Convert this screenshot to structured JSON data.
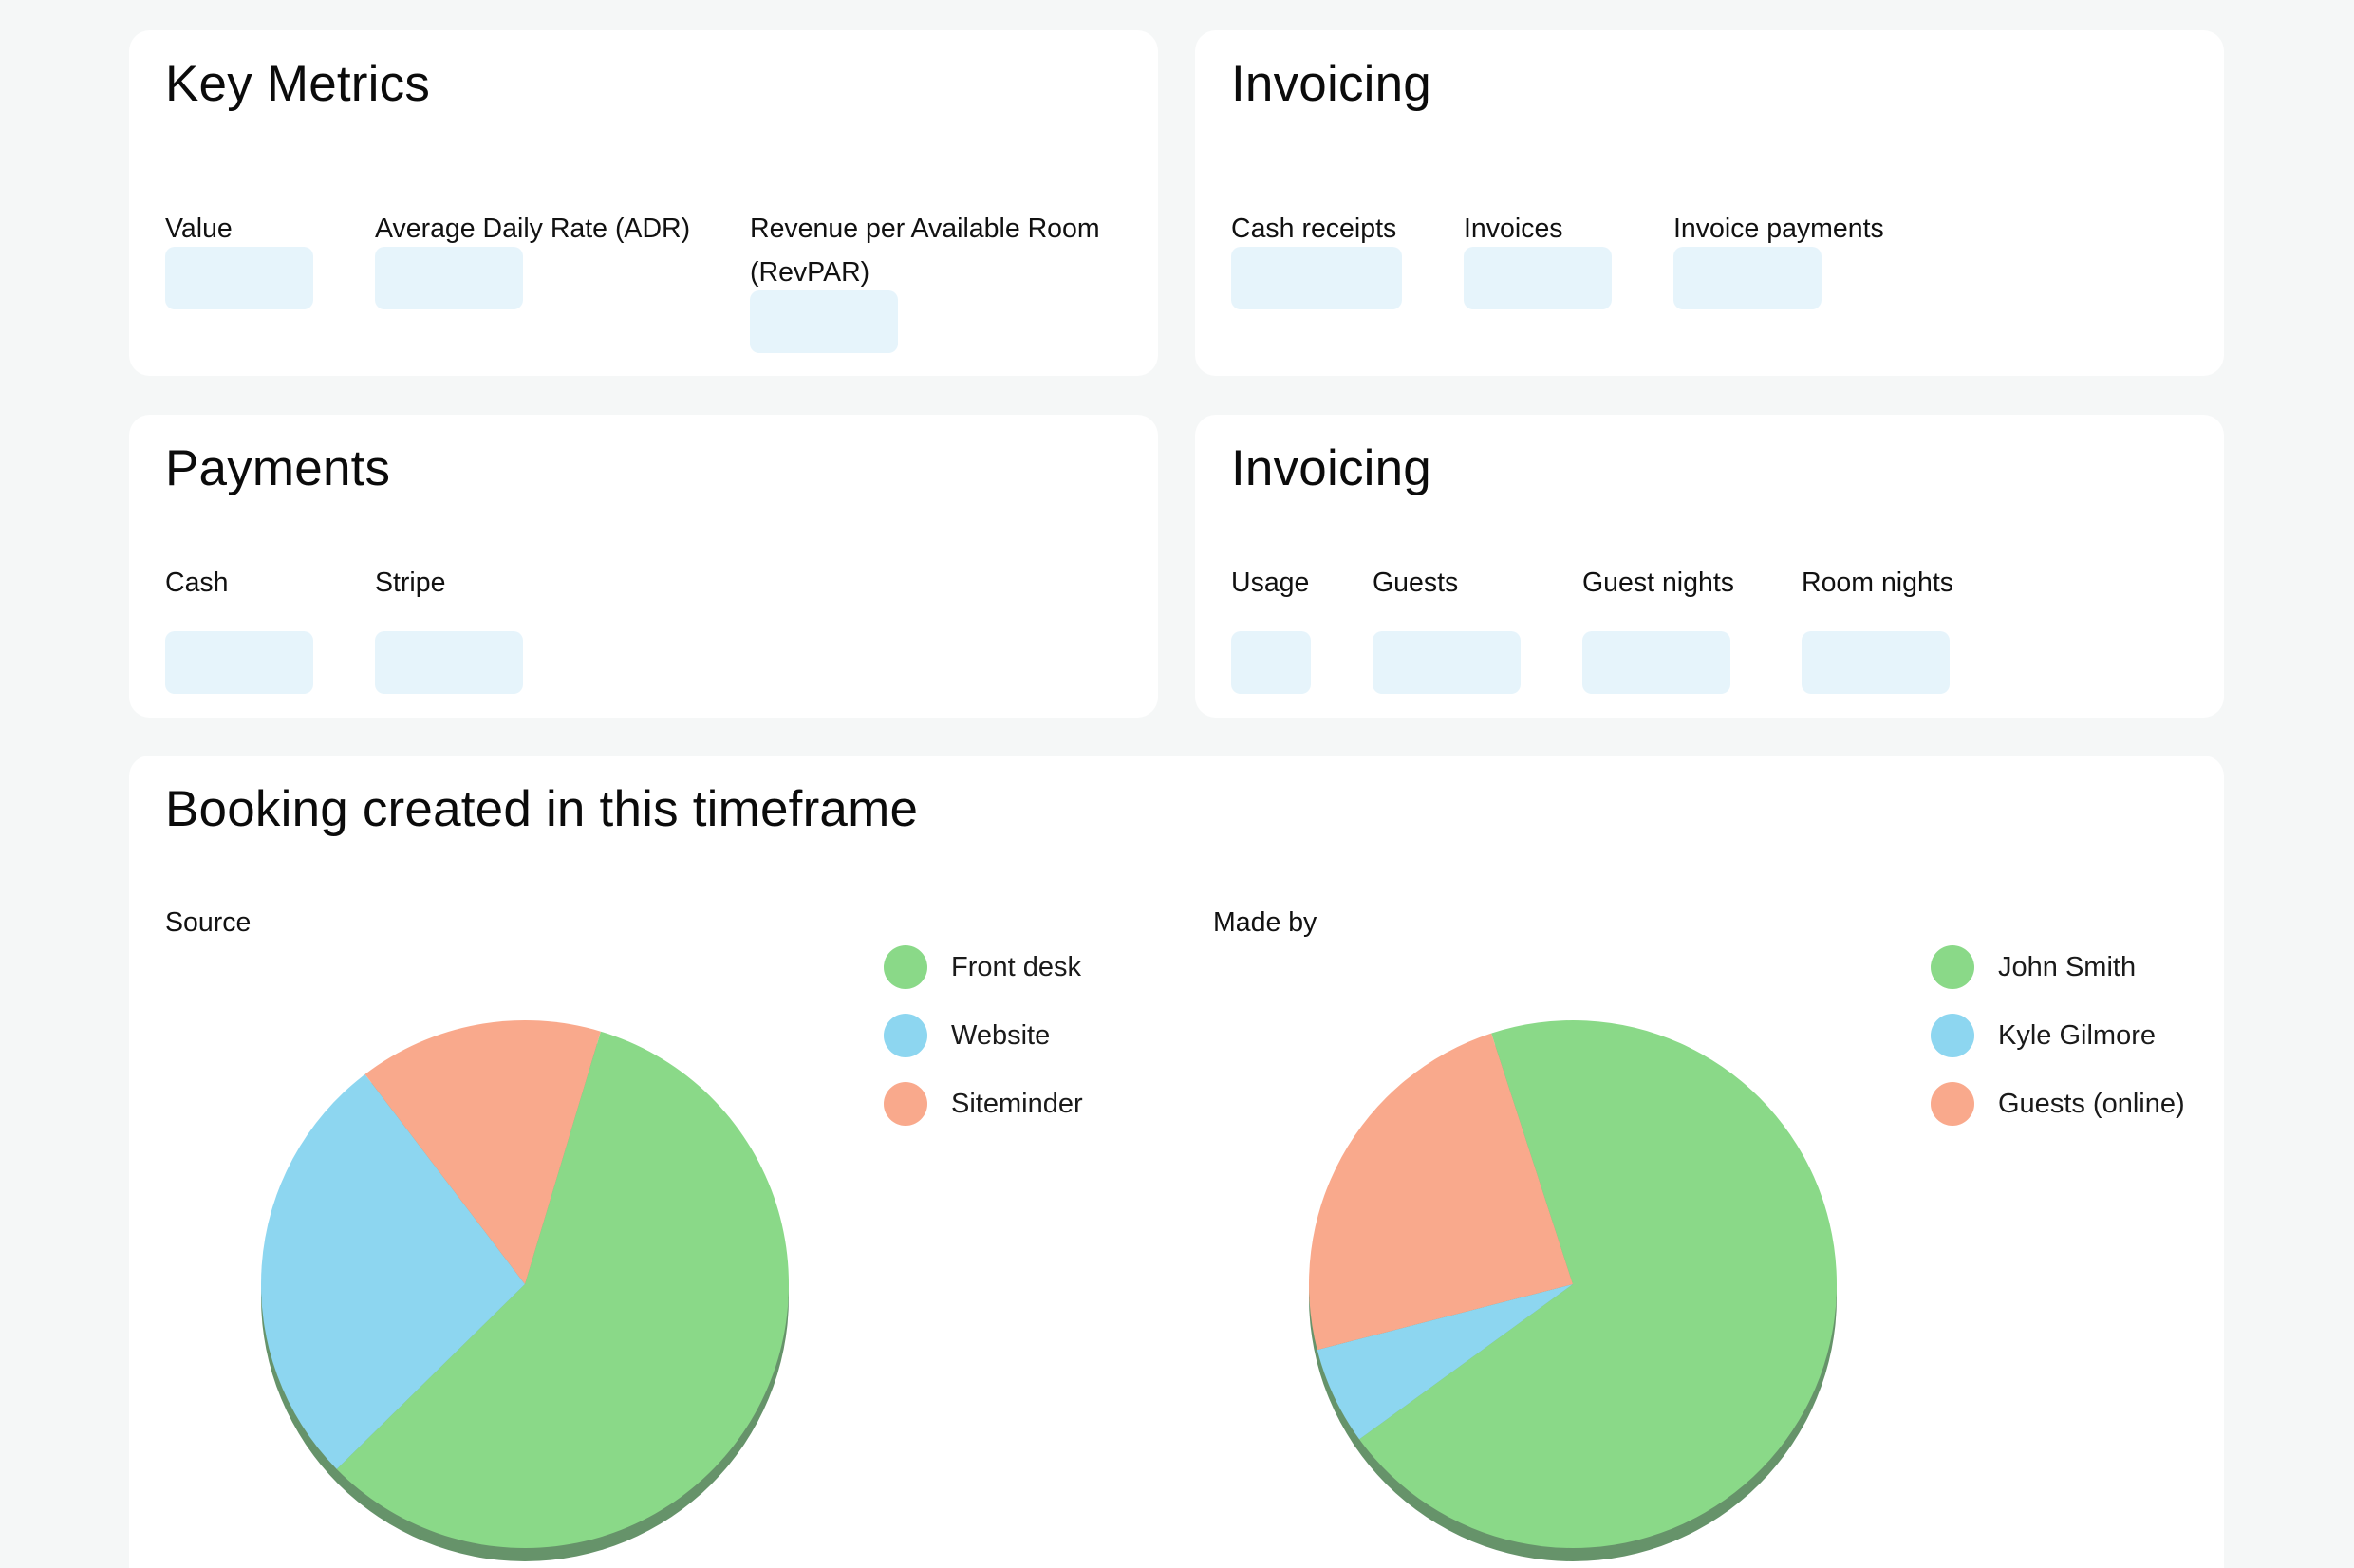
{
  "key_metrics": {
    "title": "Key Metrics",
    "labels": [
      "Value",
      "Average Daily Rate (ADR)",
      "Revenue per Available Room",
      "(RevPAR)"
    ]
  },
  "invoicing_1": {
    "title": "Invoicing",
    "labels": [
      "Cash receipts",
      "Invoices",
      "Invoice payments"
    ]
  },
  "payments": {
    "title": "Payments",
    "labels": [
      "Cash",
      "Stripe"
    ]
  },
  "invoicing_2": {
    "title": "Invoicing",
    "labels": [
      "Usage",
      "Guests",
      "Guest nights",
      "Room nights"
    ]
  },
  "bookings": {
    "title": "Booking created in this timeframe"
  },
  "colors": {
    "green": "#8ad988",
    "blue": "#8dd6f0",
    "salmon": "#f9a98c",
    "shadow": "#66936a",
    "placeholder": "#e6f4fb"
  },
  "chart_data": [
    {
      "type": "pie",
      "title": "Source",
      "legend_position": "top-right",
      "categories": [
        "Front desk",
        "Website",
        "Siteminder"
      ],
      "values": [
        58,
        27,
        15
      ],
      "colors": [
        "#8ad988",
        "#8dd6f0",
        "#f9a98c"
      ]
    },
    {
      "type": "pie",
      "title": "Made by",
      "legend_position": "top-right",
      "categories": [
        "John Smith",
        "Kyle Gilmore",
        "Guests (online)"
      ],
      "values": [
        70,
        6,
        24
      ],
      "colors": [
        "#8ad988",
        "#8dd6f0",
        "#f9a98c"
      ]
    }
  ]
}
